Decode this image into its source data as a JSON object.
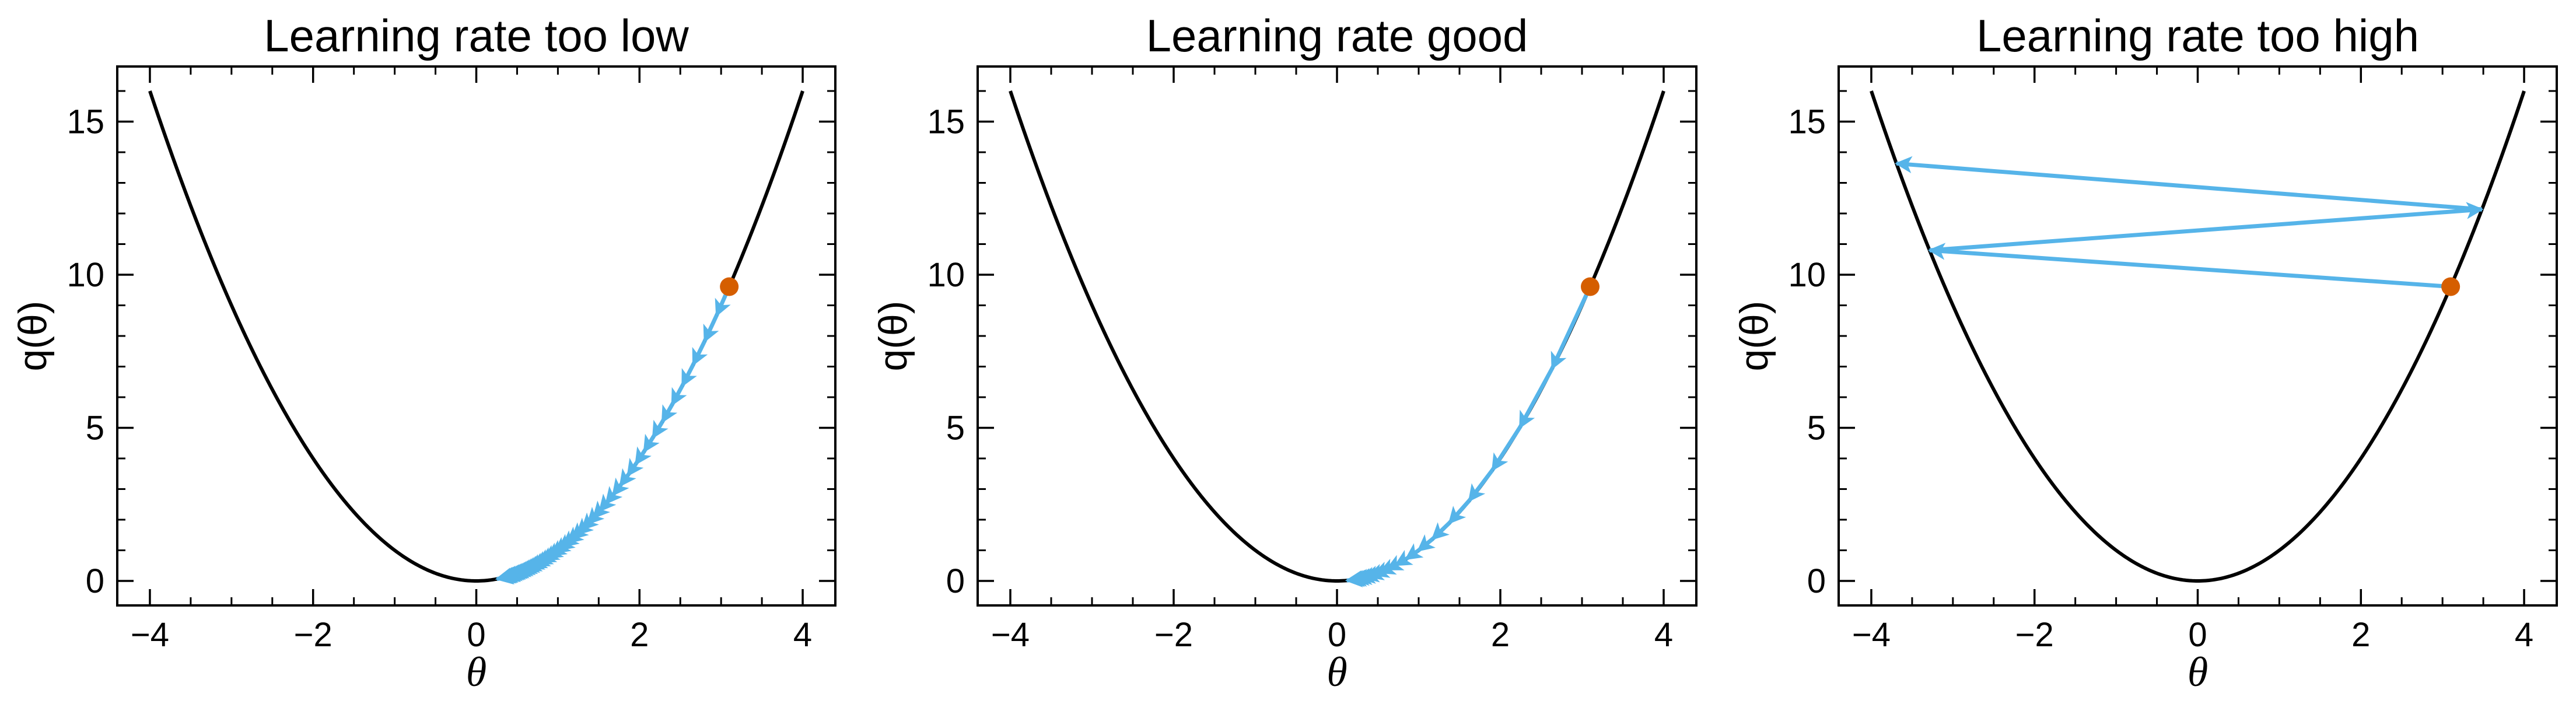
{
  "chart_data": [
    {
      "type": "line",
      "title": "Learning rate too low",
      "xlabel": "θ",
      "ylabel": "q(θ)",
      "xlim": [
        -4.4,
        4.4
      ],
      "ylim": [
        -0.8,
        16.8
      ],
      "xticks": [
        -4,
        -2,
        0,
        2,
        4
      ],
      "xtick_labels": [
        "−4",
        "−2",
        "0",
        "2",
        "4"
      ],
      "yticks": [
        0,
        5,
        10,
        15
      ],
      "ytick_labels": [
        "0",
        "5",
        "10",
        "15"
      ],
      "curve": {
        "name": "",
        "function": "theta^2",
        "x_range": [
          -4,
          4
        ],
        "color": "#000000"
      },
      "start_point": {
        "x": 3.1,
        "y": 9.61,
        "color": "#d55e00"
      },
      "steps_color": "#56b4e9",
      "steps": [
        {
          "x": 3.1,
          "y": 9.61
        },
        {
          "x": 2.945,
          "y": 8.673
        },
        {
          "x": 2.798,
          "y": 7.828
        },
        {
          "x": 2.658,
          "y": 7.065
        },
        {
          "x": 2.525,
          "y": 6.376
        },
        {
          "x": 2.399,
          "y": 5.754
        },
        {
          "x": 2.279,
          "y": 5.193
        },
        {
          "x": 2.165,
          "y": 4.687
        },
        {
          "x": 2.057,
          "y": 4.23
        },
        {
          "x": 1.954,
          "y": 3.818
        },
        {
          "x": 1.856,
          "y": 3.446
        },
        {
          "x": 1.763,
          "y": 3.11
        },
        {
          "x": 1.675,
          "y": 2.806
        },
        {
          "x": 1.591,
          "y": 2.533
        },
        {
          "x": 1.512,
          "y": 2.286
        },
        {
          "x": 1.436,
          "y": 2.063
        },
        {
          "x": 1.364,
          "y": 1.862
        },
        {
          "x": 1.296,
          "y": 1.68
        },
        {
          "x": 1.231,
          "y": 1.516
        },
        {
          "x": 1.17,
          "y": 1.368
        },
        {
          "x": 1.111,
          "y": 1.235
        },
        {
          "x": 1.056,
          "y": 1.114
        },
        {
          "x": 1.003,
          "y": 1.006
        },
        {
          "x": 0.953,
          "y": 0.908
        },
        {
          "x": 0.905,
          "y": 0.819
        },
        {
          "x": 0.86,
          "y": 0.739
        },
        {
          "x": 0.817,
          "y": 0.667
        },
        {
          "x": 0.776,
          "y": 0.602
        },
        {
          "x": 0.737,
          "y": 0.543
        },
        {
          "x": 0.7,
          "y": 0.49
        },
        {
          "x": 0.665,
          "y": 0.443
        },
        {
          "x": 0.632,
          "y": 0.399
        },
        {
          "x": 0.6,
          "y": 0.36
        },
        {
          "x": 0.57,
          "y": 0.325
        },
        {
          "x": 0.542,
          "y": 0.294
        },
        {
          "x": 0.515,
          "y": 0.265
        },
        {
          "x": 0.489,
          "y": 0.239
        },
        {
          "x": 0.465,
          "y": 0.216
        },
        {
          "x": 0.441,
          "y": 0.195
        },
        {
          "x": 0.419,
          "y": 0.176
        },
        {
          "x": 0.398,
          "y": 0.159
        },
        {
          "x": 0.378,
          "y": 0.143
        },
        {
          "x": 0.359,
          "y": 0.129
        },
        {
          "x": 0.341,
          "y": 0.117
        },
        {
          "x": 0.324,
          "y": 0.105
        },
        {
          "x": 0.308,
          "y": 0.095
        },
        {
          "x": 0.293,
          "y": 0.086
        },
        {
          "x": 0.278,
          "y": 0.077
        },
        {
          "x": 0.264,
          "y": 0.07
        },
        {
          "x": 0.251,
          "y": 0.063
        }
      ]
    },
    {
      "type": "line",
      "title": "Learning rate good",
      "xlabel": "θ",
      "ylabel": "q(θ)",
      "xlim": [
        -4.4,
        4.4
      ],
      "ylim": [
        -0.8,
        16.8
      ],
      "xticks": [
        -4,
        -2,
        0,
        2,
        4
      ],
      "xtick_labels": [
        "−4",
        "−2",
        "0",
        "2",
        "4"
      ],
      "yticks": [
        0,
        5,
        10,
        15
      ],
      "ytick_labels": [
        "0",
        "5",
        "10",
        "15"
      ],
      "curve": {
        "name": "",
        "function": "theta^2",
        "x_range": [
          -4,
          4
        ],
        "color": "#000000"
      },
      "start_point": {
        "x": 3.1,
        "y": 9.61,
        "color": "#d55e00"
      },
      "steps_color": "#56b4e9",
      "steps": [
        {
          "x": 3.1,
          "y": 9.61
        },
        {
          "x": 2.635,
          "y": 6.943
        },
        {
          "x": 2.24,
          "y": 5.016
        },
        {
          "x": 1.904,
          "y": 3.624
        },
        {
          "x": 1.618,
          "y": 2.619
        },
        {
          "x": 1.375,
          "y": 1.892
        },
        {
          "x": 1.169,
          "y": 1.367
        },
        {
          "x": 0.994,
          "y": 0.988
        },
        {
          "x": 0.845,
          "y": 0.714
        },
        {
          "x": 0.718,
          "y": 0.516
        },
        {
          "x": 0.61,
          "y": 0.372
        },
        {
          "x": 0.519,
          "y": 0.269
        },
        {
          "x": 0.441,
          "y": 0.194
        },
        {
          "x": 0.375,
          "y": 0.14
        },
        {
          "x": 0.318,
          "y": 0.101
        },
        {
          "x": 0.271,
          "y": 0.073
        },
        {
          "x": 0.23,
          "y": 0.053
        },
        {
          "x": 0.196,
          "y": 0.038
        },
        {
          "x": 0.166,
          "y": 0.028
        },
        {
          "x": 0.141,
          "y": 0.02
        },
        {
          "x": 0.12,
          "y": 0.014
        }
      ]
    },
    {
      "type": "line",
      "title": "Learning rate too high",
      "xlabel": "θ",
      "ylabel": "q(θ)",
      "xlim": [
        -4.4,
        4.4
      ],
      "ylim": [
        -0.8,
        16.8
      ],
      "xticks": [
        -4,
        -2,
        0,
        2,
        4
      ],
      "xtick_labels": [
        "−4",
        "−2",
        "0",
        "2",
        "4"
      ],
      "yticks": [
        0,
        5,
        10,
        15
      ],
      "ytick_labels": [
        "0",
        "5",
        "10",
        "15"
      ],
      "curve": {
        "name": "",
        "function": "theta^2",
        "x_range": [
          -4,
          4
        ],
        "color": "#000000"
      },
      "start_point": {
        "x": 3.1,
        "y": 9.61,
        "color": "#d55e00"
      },
      "steps_color": "#56b4e9",
      "steps": [
        {
          "x": 3.1,
          "y": 9.61
        },
        {
          "x": -3.286,
          "y": 10.798
        },
        {
          "x": 3.483,
          "y": 12.133
        },
        {
          "x": -3.692,
          "y": 13.632
        }
      ]
    }
  ]
}
